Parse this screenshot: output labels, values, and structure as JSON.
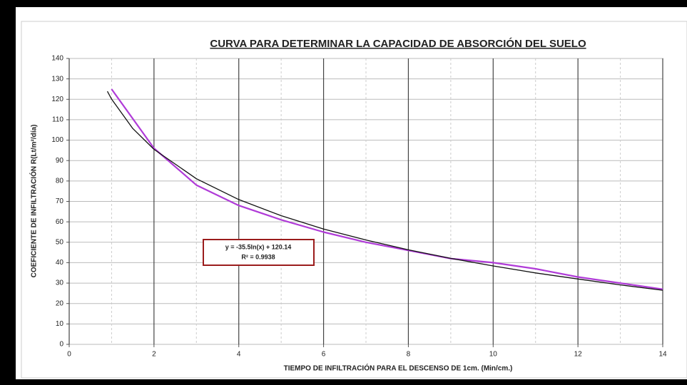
{
  "chart_data": {
    "type": "line",
    "title": "CURVA PARA DETERMINAR LA CAPACIDAD DE ABSORCIÓN DEL SUELO",
    "xlabel": "TIEMPO DE INFILTRACIÓN PARA EL DESCENSO DE 1cm. (Min/cm.)",
    "ylabel": "COEFICIENTE DE INFILTRACIÓN R(Lt/m²/día)",
    "annotation": [
      "y = -35.5ln(x) + 120.14",
      "R² = 0.9938"
    ],
    "xlim": [
      0,
      14
    ],
    "xticks": [
      0,
      2,
      4,
      6,
      8,
      10,
      12,
      14
    ],
    "xminor": [
      1,
      3,
      5,
      7,
      9,
      11,
      13
    ],
    "ylim": [
      0,
      140
    ],
    "yticks": [
      0,
      10,
      20,
      30,
      40,
      50,
      60,
      70,
      80,
      90,
      100,
      110,
      120,
      130,
      140
    ],
    "grid": true,
    "series": [
      {
        "color": "#b03bd8",
        "x": [
          1,
          2,
          3,
          4,
          5,
          6,
          7,
          8,
          9,
          10,
          11,
          12,
          13,
          14
        ],
        "values": [
          125,
          96,
          78,
          68,
          61,
          55,
          50,
          46,
          42,
          40,
          37,
          33,
          30,
          27
        ]
      },
      {
        "color": "#111111",
        "x": [
          0.9,
          1,
          1.5,
          2,
          3,
          4,
          5,
          6,
          7,
          8,
          9,
          10,
          11,
          12,
          13,
          14
        ],
        "values": [
          123.9,
          120.1,
          105.7,
          95.5,
          81.1,
          70.9,
          63.0,
          56.5,
          51.1,
          46.3,
          42.1,
          38.4,
          35.0,
          32.0,
          29.1,
          26.5
        ]
      }
    ]
  }
}
